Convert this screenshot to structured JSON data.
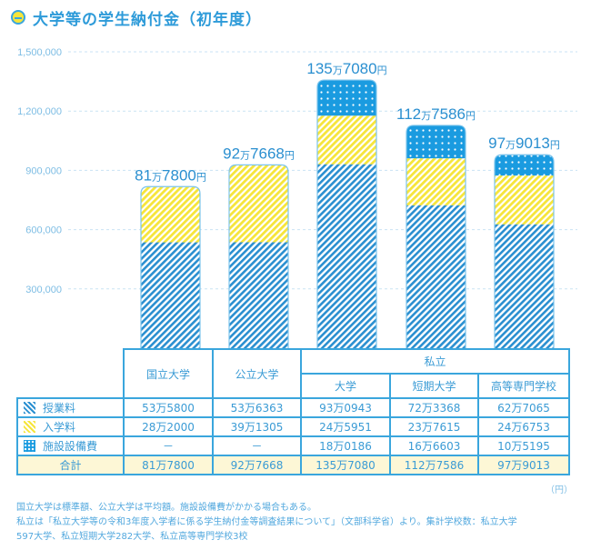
{
  "title": "大学等の学生納付金（初年度）",
  "unit_label": "（円）",
  "notes": [
    "国立大学は標準額、公立大学は平均額。施設設備費がかかる場合もある。",
    "私立は「私立大学等の令和3年度入学者に係る学生納付金等調査結果について」（文部科学省）より。集計学校数：私立大学",
    "597大学、私立短期大学282大学、私立高等専門学校3校"
  ],
  "table": {
    "group_header": "私立",
    "columns": [
      "国立大学",
      "公立大学",
      "大学",
      "短期大学",
      "高等専門学校"
    ],
    "rows": [
      {
        "label": "授業料",
        "icon": "tuition-swatch-icon",
        "values": [
          "53万5800",
          "53万6363",
          "93万0943",
          "72万3368",
          "62万7065"
        ]
      },
      {
        "label": "入学料",
        "icon": "entry-fee-swatch-icon",
        "values": [
          "28万2000",
          "39万1305",
          "24万5951",
          "23万7615",
          "24万6753"
        ]
      },
      {
        "label": "施設設備費",
        "icon": "facility-fee-swatch-icon",
        "values": [
          "－",
          "－",
          "18万0186",
          "16万6603",
          "10万5195"
        ]
      },
      {
        "label": "合計",
        "values": [
          "81万7800",
          "92万7668",
          "135万7080",
          "112万7586",
          "97万9013"
        ]
      }
    ]
  },
  "chart_data": {
    "type": "bar",
    "stacked": true,
    "title": "大学等の学生納付金（初年度）",
    "xlabel": "",
    "ylabel": "",
    "ylim": [
      0,
      1500000
    ],
    "yticks": [
      300000,
      600000,
      900000,
      1200000,
      1500000
    ],
    "ytick_labels": [
      "300,000",
      "600,000",
      "900,000",
      "1,200,000",
      "1,500,000"
    ],
    "grid": true,
    "categories": [
      "国立大学",
      "公立大学",
      "私立大学",
      "私立短期大学",
      "私立高等専門学校"
    ],
    "series": [
      {
        "name": "授業料",
        "pattern": "diagonal-blue",
        "color": "#2a8fd0",
        "values": [
          535800,
          536363,
          930943,
          723368,
          627065
        ]
      },
      {
        "name": "入学料",
        "pattern": "diagonal-yellow",
        "color": "#f6e53a",
        "values": [
          282000,
          391305,
          245951,
          237615,
          246753
        ]
      },
      {
        "name": "施設設備費",
        "pattern": "dots-blue",
        "color": "#1a9be0",
        "values": [
          0,
          0,
          180186,
          166603,
          105195
        ]
      }
    ],
    "totals": [
      817800,
      927668,
      1357080,
      1127586,
      979013
    ],
    "total_labels": [
      {
        "main": "81",
        "man": "万",
        "rest": "7800",
        "yen": "円"
      },
      {
        "main": "92",
        "man": "万",
        "rest": "7668",
        "yen": "円"
      },
      {
        "main": "135",
        "man": "万",
        "rest": "7080",
        "yen": "円"
      },
      {
        "main": "112",
        "man": "万",
        "rest": "7586",
        "yen": "円"
      },
      {
        "main": "97",
        "man": "万",
        "rest": "9013",
        "yen": "円"
      }
    ]
  }
}
